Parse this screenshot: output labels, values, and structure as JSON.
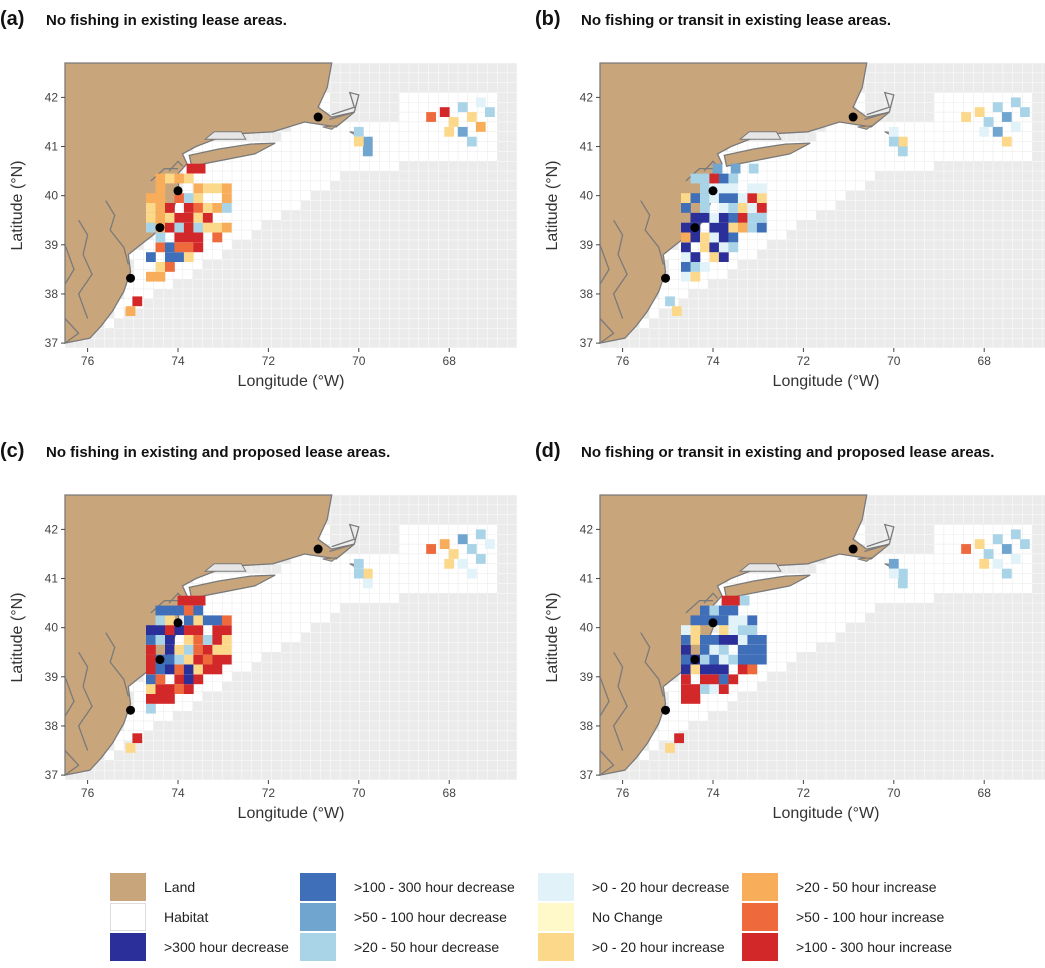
{
  "panels": [
    {
      "label": "(a)",
      "title": "No fishing in existing lease areas.",
      "variant": "a"
    },
    {
      "label": "(b)",
      "title": "No fishing or transit in existing lease areas.",
      "variant": "b"
    },
    {
      "label": "(c)",
      "title": "No fishing in existing and proposed lease areas.",
      "variant": "c"
    },
    {
      "label": "(d)",
      "title": "No fishing or transit in existing and proposed lease areas.",
      "variant": "d"
    }
  ],
  "axes": {
    "xlabel": "Longitude (°W)",
    "ylabel": "Latitude (°N)",
    "xticks": [
      76,
      74,
      72,
      70,
      68
    ],
    "yticks": [
      37,
      38,
      39,
      40,
      41,
      42
    ],
    "xlim": [
      76.5,
      66.5
    ],
    "ylim": [
      36.9,
      42.7
    ]
  },
  "colors": {
    "land": "#c9a57c",
    "habitat": "#ffffff",
    "background": "#ebebeb",
    "coast": "#7a7a7a"
  },
  "legend": [
    {
      "label": "Land",
      "color": "#c9a57c"
    },
    {
      "label": "Habitat",
      "color": "#ffffff"
    },
    {
      "label": ">300 hour decrease",
      "color": "#2b2f99"
    },
    {
      "label": ">100 - 300 hour decrease",
      "color": "#3f6fb8"
    },
    {
      "label": ">50 - 100 hour decrease",
      "color": "#6fa5cf"
    },
    {
      "label": ">20 - 50 hour decrease",
      "color": "#a9d4e8"
    },
    {
      "label": ">0 - 20 hour decrease",
      "color": "#e2f2f9"
    },
    {
      "label": "No Change",
      "color": "#fff9c9"
    },
    {
      "label": ">0 - 20 hour increase",
      "color": "#fcd98a"
    },
    {
      "label": ">20 - 50 hour increase",
      "color": "#f8ad5a"
    },
    {
      "label": ">50 - 100 hour increase",
      "color": "#ee6a3d"
    },
    {
      "label": ">100 - 300 hour increase",
      "color": "#d3282a"
    }
  ]
}
